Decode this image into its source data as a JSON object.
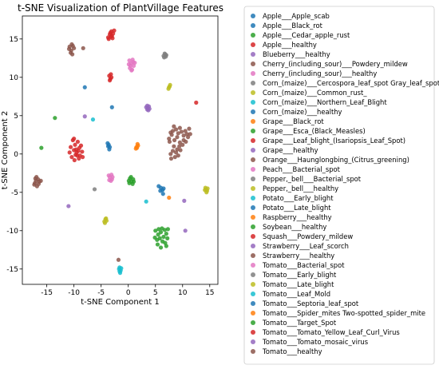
{
  "chart_data": {
    "type": "scatter",
    "title": "t-SNE Visualization of PlantVillage Features",
    "xlabel": "t-SNE Component 1",
    "ylabel": "t-SNE Component 2",
    "xlim": [
      -19.5,
      16.5
    ],
    "ylim": [
      -17,
      18
    ],
    "xticks": [
      -15,
      -10,
      -5,
      0,
      5,
      10,
      15
    ],
    "yticks": [
      -15,
      -10,
      -5,
      0,
      5,
      10,
      15
    ],
    "grid": false,
    "legend_position": "outside-right",
    "marker_alpha": 0.85,
    "series": [
      {
        "name": "Apple___Apple_scab",
        "color": "#1f77b4",
        "points": [
          [
            6.0,
            -4.4
          ],
          [
            6.3,
            -4.7
          ],
          [
            6.5,
            -4.5
          ],
          [
            5.9,
            -4.8
          ]
        ]
      },
      {
        "name": "Apple___Black_rot",
        "color": "#1f77b4",
        "points": [
          [
            -8.0,
            8.7
          ]
        ]
      },
      {
        "name": "Apple___Cedar_apple_rust",
        "color": "#2ca02c",
        "points": [
          [
            -13.5,
            4.7
          ],
          [
            -16.0,
            0.8
          ]
        ]
      },
      {
        "name": "Apple___healthy",
        "color": "#d62728",
        "points": [
          [
            12.5,
            6.7
          ]
        ]
      },
      {
        "name": "Blueberry___healthy",
        "color": "#9467bd",
        "points": [
          [
            -11.0,
            -6.8
          ],
          [
            10.5,
            -10.0
          ],
          [
            -8.0,
            4.9
          ]
        ]
      },
      {
        "name": "Cherry_(including_sour)___Powdery_mildew",
        "color": "#8c564b",
        "points": [
          [
            -10.5,
            13.5
          ],
          [
            -10.8,
            14.0
          ],
          [
            -10.2,
            14.1
          ],
          [
            -10.6,
            13.2
          ],
          [
            -10.0,
            13.8
          ],
          [
            -10.3,
            13.0
          ],
          [
            -10.9,
            13.7
          ],
          [
            -10.4,
            14.3
          ],
          [
            -8.3,
            13.8
          ]
        ]
      },
      {
        "name": "Cherry_(including_sour)___healthy",
        "color": "#e377c2",
        "points": [
          [
            0.5,
            11.8
          ],
          [
            0.3,
            11.2
          ],
          [
            0.8,
            12.3
          ],
          [
            1.0,
            11.5
          ],
          [
            0.1,
            11.7
          ],
          [
            0.6,
            10.9
          ],
          [
            0.9,
            12.0
          ],
          [
            0.2,
            12.2
          ],
          [
            1.2,
            11.9
          ],
          [
            0.4,
            11.5
          ],
          [
            0.7,
            11.0
          ]
        ]
      },
      {
        "name": "Corn_(maize)___Cercospora_leaf_spot Gray_leaf_spot",
        "color": "#7f7f7f",
        "points": [
          [
            6.5,
            12.8
          ],
          [
            6.8,
            13.0
          ],
          [
            7.0,
            12.9
          ],
          [
            6.6,
            12.6
          ],
          [
            6.9,
            12.7
          ],
          [
            6.7,
            13.1
          ]
        ]
      },
      {
        "name": "Corn_(maize)___Common_rust_",
        "color": "#bcbd22",
        "points": [
          [
            7.5,
            8.7
          ],
          [
            7.7,
            9.0
          ],
          [
            7.4,
            8.5
          ],
          [
            7.6,
            8.8
          ]
        ]
      },
      {
        "name": "Corn_(maize)___Northern_Leaf_Blight",
        "color": "#17becf",
        "points": [
          [
            -6.5,
            4.5
          ]
        ]
      },
      {
        "name": "Corn_(maize)___healthy",
        "color": "#1f77b4",
        "points": [
          [
            -3.7,
            1.0
          ],
          [
            -3.5,
            0.6
          ],
          [
            -3.8,
            1.4
          ],
          [
            -3.6,
            1.2
          ],
          [
            -3.4,
            0.9
          ],
          [
            -3.0,
            6.1
          ]
        ]
      },
      {
        "name": "Grape___Black_rot",
        "color": "#ff7f0e",
        "points": [
          [
            1.6,
            0.8
          ],
          [
            1.8,
            1.1
          ],
          [
            1.5,
            0.9
          ],
          [
            1.7,
            1.3
          ],
          [
            1.4,
            0.7
          ]
        ]
      },
      {
        "name": "Grape___Esca_(Black_Measles)",
        "color": "#2ca02c",
        "points": [
          [
            0.3,
            -3.2
          ],
          [
            0.6,
            -3.6
          ],
          [
            0.9,
            -3.3
          ],
          [
            0.2,
            -3.8
          ],
          [
            0.8,
            -3.9
          ],
          [
            0.5,
            -3.0
          ],
          [
            0.1,
            -3.5
          ],
          [
            1.0,
            -3.6
          ]
        ]
      },
      {
        "name": "Grape___Leaf_blight_(Isariopsis_Leaf_Spot)",
        "color": "#d62728",
        "points": [
          [
            -10.0,
            0.5
          ],
          [
            -9.5,
            0.2
          ],
          [
            -9.0,
            0.8
          ],
          [
            -10.4,
            -0.4
          ],
          [
            -9.8,
            1.2
          ],
          [
            -8.9,
            -0.2
          ],
          [
            -9.3,
            1.6
          ],
          [
            -10.6,
            0.9
          ],
          [
            -8.5,
            0.3
          ],
          [
            -9.9,
            -0.8
          ],
          [
            -9.1,
            -0.6
          ],
          [
            -10.2,
            1.8
          ],
          [
            -8.7,
            1.1
          ],
          [
            -9.6,
            0.6
          ],
          [
            -10.8,
            0.2
          ],
          [
            -8.4,
            -0.4
          ],
          [
            -9.4,
            -0.2
          ],
          [
            -10.0,
            2.0
          ],
          [
            -9.7,
            -0.1
          ],
          [
            -9.2,
            0.4
          ],
          [
            -3.2,
            15.3
          ],
          [
            -3.4,
            15.6
          ],
          [
            -3.0,
            15.4
          ],
          [
            -3.6,
            15.0
          ],
          [
            -2.8,
            15.7
          ],
          [
            -3.1,
            16.0
          ],
          [
            -2.9,
            15.1
          ],
          [
            -3.3,
            15.8
          ],
          [
            -3.7,
            15.2
          ],
          [
            -2.6,
            16.1
          ],
          [
            -3.3,
            9.8
          ],
          [
            -3.5,
            10.2
          ],
          [
            -3.1,
            10.0
          ],
          [
            -3.4,
            9.6
          ],
          [
            -3.2,
            10.4
          ]
        ]
      },
      {
        "name": "Grape___healthy",
        "color": "#9467bd",
        "points": [
          [
            3.5,
            5.8
          ],
          [
            3.8,
            6.2
          ],
          [
            3.6,
            6.0
          ],
          [
            3.3,
            6.1
          ],
          [
            3.9,
            5.9
          ],
          [
            3.5,
            6.3
          ],
          [
            3.7,
            5.7
          ]
        ]
      },
      {
        "name": "Orange___Haunglongbing_(Citrus_greening)",
        "color": "#8c564b",
        "points": [
          [
            7.5,
            2.0
          ],
          [
            8.0,
            2.5
          ],
          [
            8.5,
            1.8
          ],
          [
            9.0,
            2.2
          ],
          [
            9.5,
            1.5
          ],
          [
            8.2,
            3.0
          ],
          [
            7.8,
            2.8
          ],
          [
            8.8,
            3.2
          ],
          [
            9.2,
            2.7
          ],
          [
            9.8,
            2.9
          ],
          [
            10.2,
            2.4
          ],
          [
            10.5,
            3.0
          ],
          [
            10.8,
            2.6
          ],
          [
            11.0,
            2.2
          ],
          [
            10.2,
            1.8
          ],
          [
            11.2,
            3.3
          ],
          [
            9.5,
            3.4
          ],
          [
            8.4,
            3.6
          ],
          [
            7.6,
            1.6
          ],
          [
            10.0,
            1.2
          ],
          [
            9.0,
            0.6
          ],
          [
            8.2,
            0.4
          ],
          [
            7.8,
            0.0
          ],
          [
            8.6,
            -0.4
          ],
          [
            9.2,
            -0.2
          ],
          [
            8.8,
            0.2
          ],
          [
            9.6,
            0.5
          ],
          [
            7.9,
            -0.6
          ],
          [
            8.4,
            1.0
          ],
          [
            9.4,
            1.0
          ],
          [
            10.6,
            1.6
          ],
          [
            11.4,
            2.6
          ]
        ]
      },
      {
        "name": "Peach___Bacterial_spot",
        "color": "#e377c2",
        "points": [
          [
            -3.4,
            -3.0
          ],
          [
            -3.0,
            -3.3
          ],
          [
            -3.6,
            -2.8
          ],
          [
            -3.2,
            -3.5
          ],
          [
            -2.9,
            -3.0
          ],
          [
            -3.5,
            -3.4
          ],
          [
            -3.1,
            -2.7
          ]
        ]
      },
      {
        "name": "Pepper,_bell___Bacterial_spot",
        "color": "#7f7f7f",
        "points": [
          [
            -6.2,
            -4.6
          ]
        ]
      },
      {
        "name": "Pepper,_bell___healthy",
        "color": "#bcbd22",
        "points": [
          [
            14.2,
            -4.4
          ],
          [
            14.5,
            -4.8
          ],
          [
            14.3,
            -4.6
          ],
          [
            14.6,
            -4.5
          ],
          [
            14.4,
            -5.0
          ],
          [
            14.1,
            -4.7
          ]
        ]
      },
      {
        "name": "Potato___Early_blight",
        "color": "#17becf",
        "points": [
          [
            3.3,
            -6.2
          ]
        ]
      },
      {
        "name": "Potato___Late_blight",
        "color": "#1f77b4",
        "points": [
          [
            6.4,
            -5.2
          ],
          [
            5.6,
            -4.2
          ]
        ]
      },
      {
        "name": "Raspberry___healthy",
        "color": "#ff7f0e",
        "points": [
          [
            7.5,
            -5.7
          ]
        ]
      },
      {
        "name": "Soybean___healthy",
        "color": "#2ca02c",
        "points": [
          [
            5.0,
            -10.0
          ],
          [
            5.5,
            -10.5
          ],
          [
            6.0,
            -10.2
          ],
          [
            6.5,
            -10.8
          ],
          [
            7.0,
            -10.4
          ],
          [
            5.3,
            -11.2
          ],
          [
            5.8,
            -11.0
          ],
          [
            6.3,
            -11.4
          ],
          [
            6.8,
            -11.6
          ],
          [
            7.2,
            -11.0
          ],
          [
            5.6,
            -9.8
          ],
          [
            6.2,
            -9.7
          ],
          [
            6.7,
            -9.9
          ],
          [
            7.3,
            -9.8
          ],
          [
            7.0,
            -12.0
          ],
          [
            6.0,
            -12.2
          ],
          [
            5.4,
            -11.8
          ],
          [
            4.9,
            -10.9
          ]
        ]
      },
      {
        "name": "Squash___Powdery_mildew",
        "color": "#d62728",
        "points": []
      },
      {
        "name": "Strawberry___Leaf_scorch",
        "color": "#9467bd",
        "points": [
          [
            10.3,
            -6.1
          ]
        ]
      },
      {
        "name": "Strawberry___healthy",
        "color": "#8c564b",
        "points": [
          [
            -1.8,
            -13.8
          ]
        ]
      },
      {
        "name": "Tomato___Bacterial_spot",
        "color": "#e377c2",
        "points": []
      },
      {
        "name": "Tomato___Early_blight",
        "color": "#7f7f7f",
        "points": []
      },
      {
        "name": "Tomato___Late_blight",
        "color": "#bcbd22",
        "points": [
          [
            -4.2,
            -8.5
          ],
          [
            -4.4,
            -8.8
          ],
          [
            -4.0,
            -8.7
          ],
          [
            -4.3,
            -9.0
          ],
          [
            -4.1,
            -8.4
          ]
        ]
      },
      {
        "name": "Tomato___Leaf_Mold",
        "color": "#17becf",
        "points": [
          [
            -1.6,
            -14.8
          ],
          [
            -1.4,
            -15.2
          ],
          [
            -1.5,
            -15.5
          ],
          [
            -1.7,
            -15.0
          ],
          [
            -1.3,
            -14.9
          ],
          [
            -1.6,
            -15.3
          ]
        ]
      },
      {
        "name": "Tomato___Septoria_leaf_spot",
        "color": "#1f77b4",
        "points": []
      },
      {
        "name": "Tomato___Spider_mites Two-spotted_spider_mite",
        "color": "#ff7f0e",
        "points": []
      },
      {
        "name": "Tomato___Target_Spot",
        "color": "#2ca02c",
        "points": []
      },
      {
        "name": "Tomato___Tomato_Yellow_Leaf_Curl_Virus",
        "color": "#d62728",
        "points": []
      },
      {
        "name": "Tomato___Tomato_mosaic_virus",
        "color": "#9467bd",
        "points": []
      },
      {
        "name": "Tomato___healthy",
        "color": "#8c564b",
        "points": [
          [
            -17.0,
            -3.5
          ],
          [
            -16.5,
            -3.9
          ],
          [
            -16.8,
            -4.2
          ],
          [
            -17.2,
            -3.8
          ],
          [
            -16.6,
            -3.3
          ],
          [
            -16.9,
            -3.0
          ],
          [
            -17.3,
            -4.0
          ],
          [
            -16.4,
            -3.6
          ],
          [
            -16.1,
            -3.5
          ],
          [
            -17.1,
            -3.2
          ]
        ]
      }
    ]
  }
}
